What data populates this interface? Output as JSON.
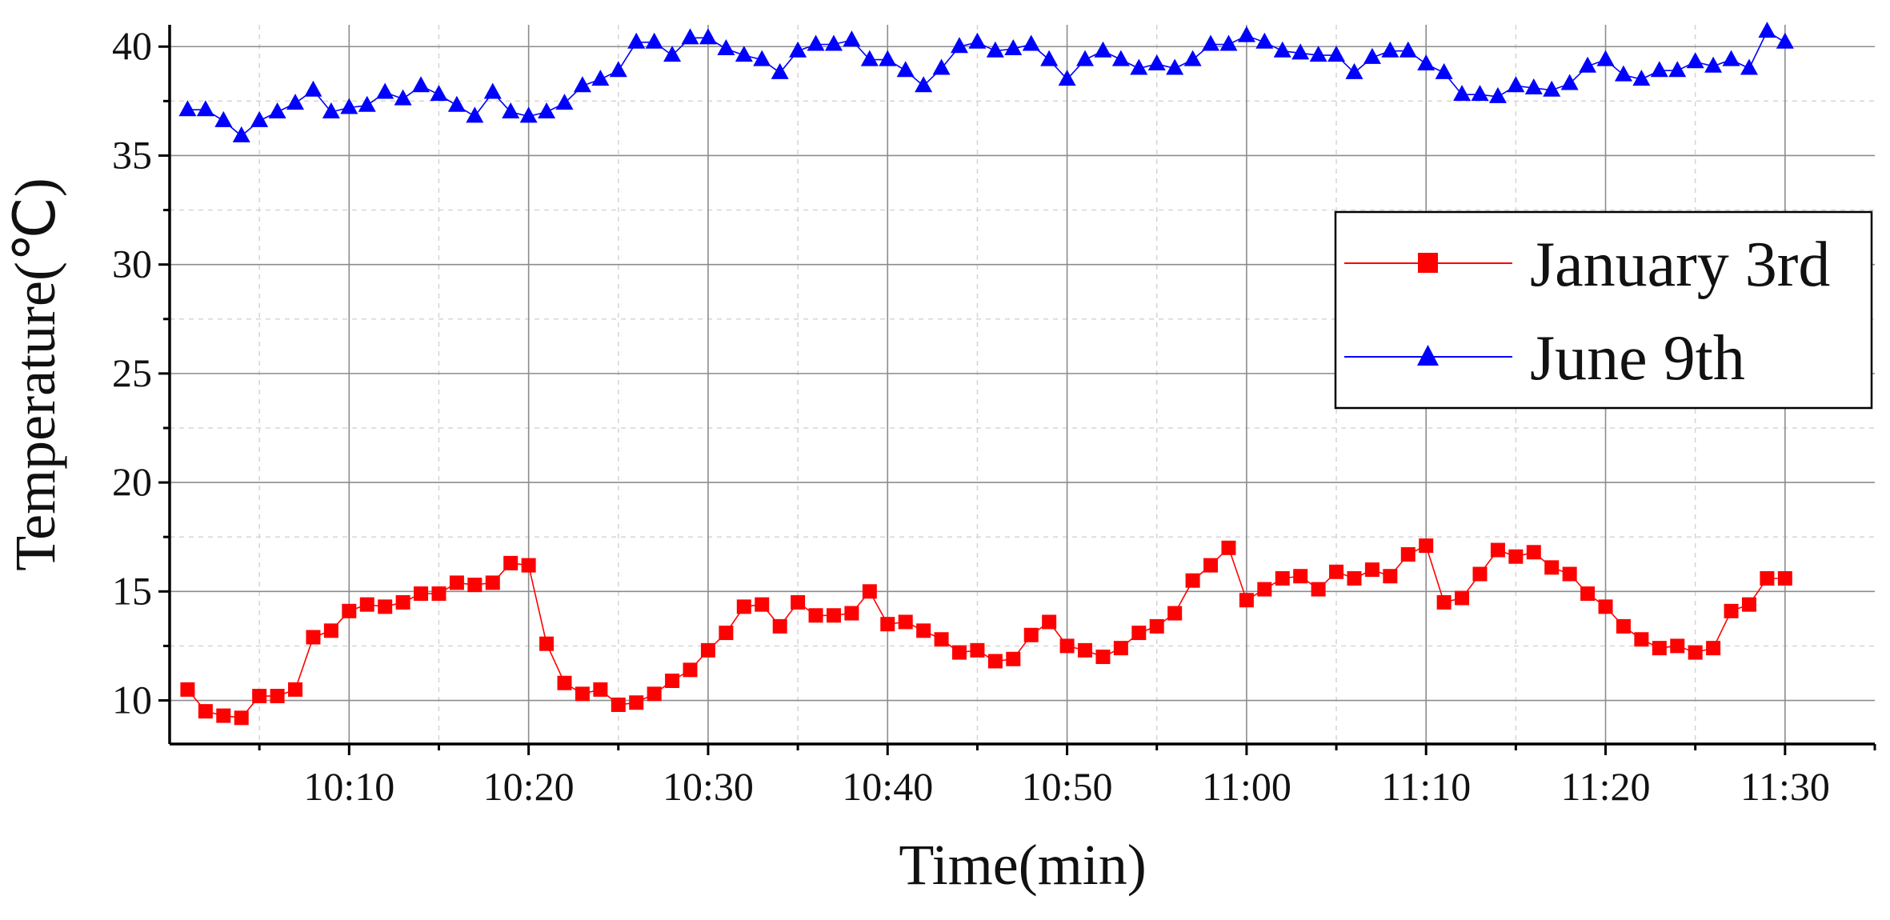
{
  "chart_data": {
    "type": "line",
    "title": "",
    "xlabel": "Time(min)",
    "ylabel": "Temperature(℃)",
    "x_tick_labels": [
      "10:10",
      "10:20",
      "10:30",
      "10:40",
      "10:50",
      "11:00",
      "11:10",
      "11:20",
      "11:30"
    ],
    "y_tick_labels": [
      "10",
      "15",
      "20",
      "25",
      "30",
      "35",
      "40"
    ],
    "xlim": [
      "10:00",
      "11:35"
    ],
    "ylim": [
      8,
      41
    ],
    "grid": true,
    "legend_position": "right",
    "x": [
      "10:01",
      "10:02",
      "10:03",
      "10:04",
      "10:05",
      "10:06",
      "10:07",
      "10:08",
      "10:09",
      "10:10",
      "10:11",
      "10:12",
      "10:13",
      "10:14",
      "10:15",
      "10:16",
      "10:17",
      "10:18",
      "10:19",
      "10:20",
      "10:21",
      "10:22",
      "10:23",
      "10:24",
      "10:25",
      "10:26",
      "10:27",
      "10:28",
      "10:29",
      "10:30",
      "10:31",
      "10:32",
      "10:33",
      "10:34",
      "10:35",
      "10:36",
      "10:37",
      "10:38",
      "10:39",
      "10:40",
      "10:41",
      "10:42",
      "10:43",
      "10:44",
      "10:45",
      "10:46",
      "10:47",
      "10:48",
      "10:49",
      "10:50",
      "10:51",
      "10:52",
      "10:53",
      "10:54",
      "10:55",
      "10:56",
      "10:57",
      "10:58",
      "10:59",
      "11:00",
      "11:01",
      "11:02",
      "11:03",
      "11:04",
      "11:05",
      "11:06",
      "11:07",
      "11:08",
      "11:09",
      "11:10",
      "11:11",
      "11:12",
      "11:13",
      "11:14",
      "11:15",
      "11:16",
      "11:17",
      "11:18",
      "11:19",
      "11:20",
      "11:21",
      "11:22",
      "11:23",
      "11:24",
      "11:25",
      "11:26",
      "11:27",
      "11:28",
      "11:29",
      "11:30"
    ],
    "series": [
      {
        "name": "January 3rd",
        "color": "#ff0000",
        "marker": "square",
        "values": [
          10.5,
          9.5,
          9.3,
          9.2,
          10.2,
          10.2,
          10.5,
          12.9,
          13.2,
          14.1,
          14.4,
          14.3,
          14.5,
          14.9,
          14.9,
          15.4,
          15.3,
          15.4,
          16.3,
          16.2,
          12.6,
          10.8,
          10.3,
          10.5,
          9.8,
          9.9,
          10.3,
          10.9,
          11.4,
          12.3,
          13.1,
          14.3,
          14.4,
          13.4,
          14.5,
          13.9,
          13.9,
          14.0,
          15.0,
          13.5,
          13.6,
          13.2,
          12.8,
          12.2,
          12.3,
          11.8,
          11.9,
          13.0,
          13.6,
          12.5,
          12.3,
          12.0,
          12.4,
          13.1,
          13.4,
          14.0,
          15.5,
          16.2,
          17.0,
          14.6,
          15.1,
          15.6,
          15.7,
          15.1,
          15.9,
          15.6,
          16.0,
          15.7,
          16.7,
          17.1,
          14.5,
          14.7,
          15.8,
          16.9,
          16.6,
          16.8,
          16.1,
          15.8,
          14.9,
          14.3,
          13.4,
          12.8,
          12.4,
          12.5,
          12.2,
          12.4,
          14.1,
          14.4,
          15.6,
          15.6
        ]
      },
      {
        "name": "June 9th",
        "color": "#0000ff",
        "marker": "triangle",
        "values": [
          37.1,
          37.1,
          36.6,
          35.9,
          36.6,
          37.0,
          37.4,
          38.0,
          37.0,
          37.2,
          37.3,
          37.9,
          37.6,
          38.2,
          37.8,
          37.3,
          36.8,
          37.9,
          37.0,
          36.8,
          37.0,
          37.4,
          38.2,
          38.5,
          38.9,
          40.2,
          40.2,
          39.6,
          40.4,
          40.4,
          39.9,
          39.6,
          39.4,
          38.8,
          39.8,
          40.1,
          40.1,
          40.3,
          39.4,
          39.4,
          38.9,
          38.2,
          39.0,
          40.0,
          40.2,
          39.8,
          39.9,
          40.1,
          39.4,
          38.5,
          39.4,
          39.8,
          39.4,
          39.0,
          39.2,
          39.0,
          39.4,
          40.1,
          40.1,
          40.5,
          40.2,
          39.8,
          39.7,
          39.6,
          39.6,
          38.8,
          39.5,
          39.8,
          39.8,
          39.2,
          38.8,
          37.8,
          37.8,
          37.7,
          38.2,
          38.1,
          38.0,
          38.3,
          39.1,
          39.4,
          38.7,
          38.5,
          38.9,
          38.9,
          39.3,
          39.1,
          39.4,
          39.0,
          40.7,
          40.2
        ]
      }
    ]
  }
}
